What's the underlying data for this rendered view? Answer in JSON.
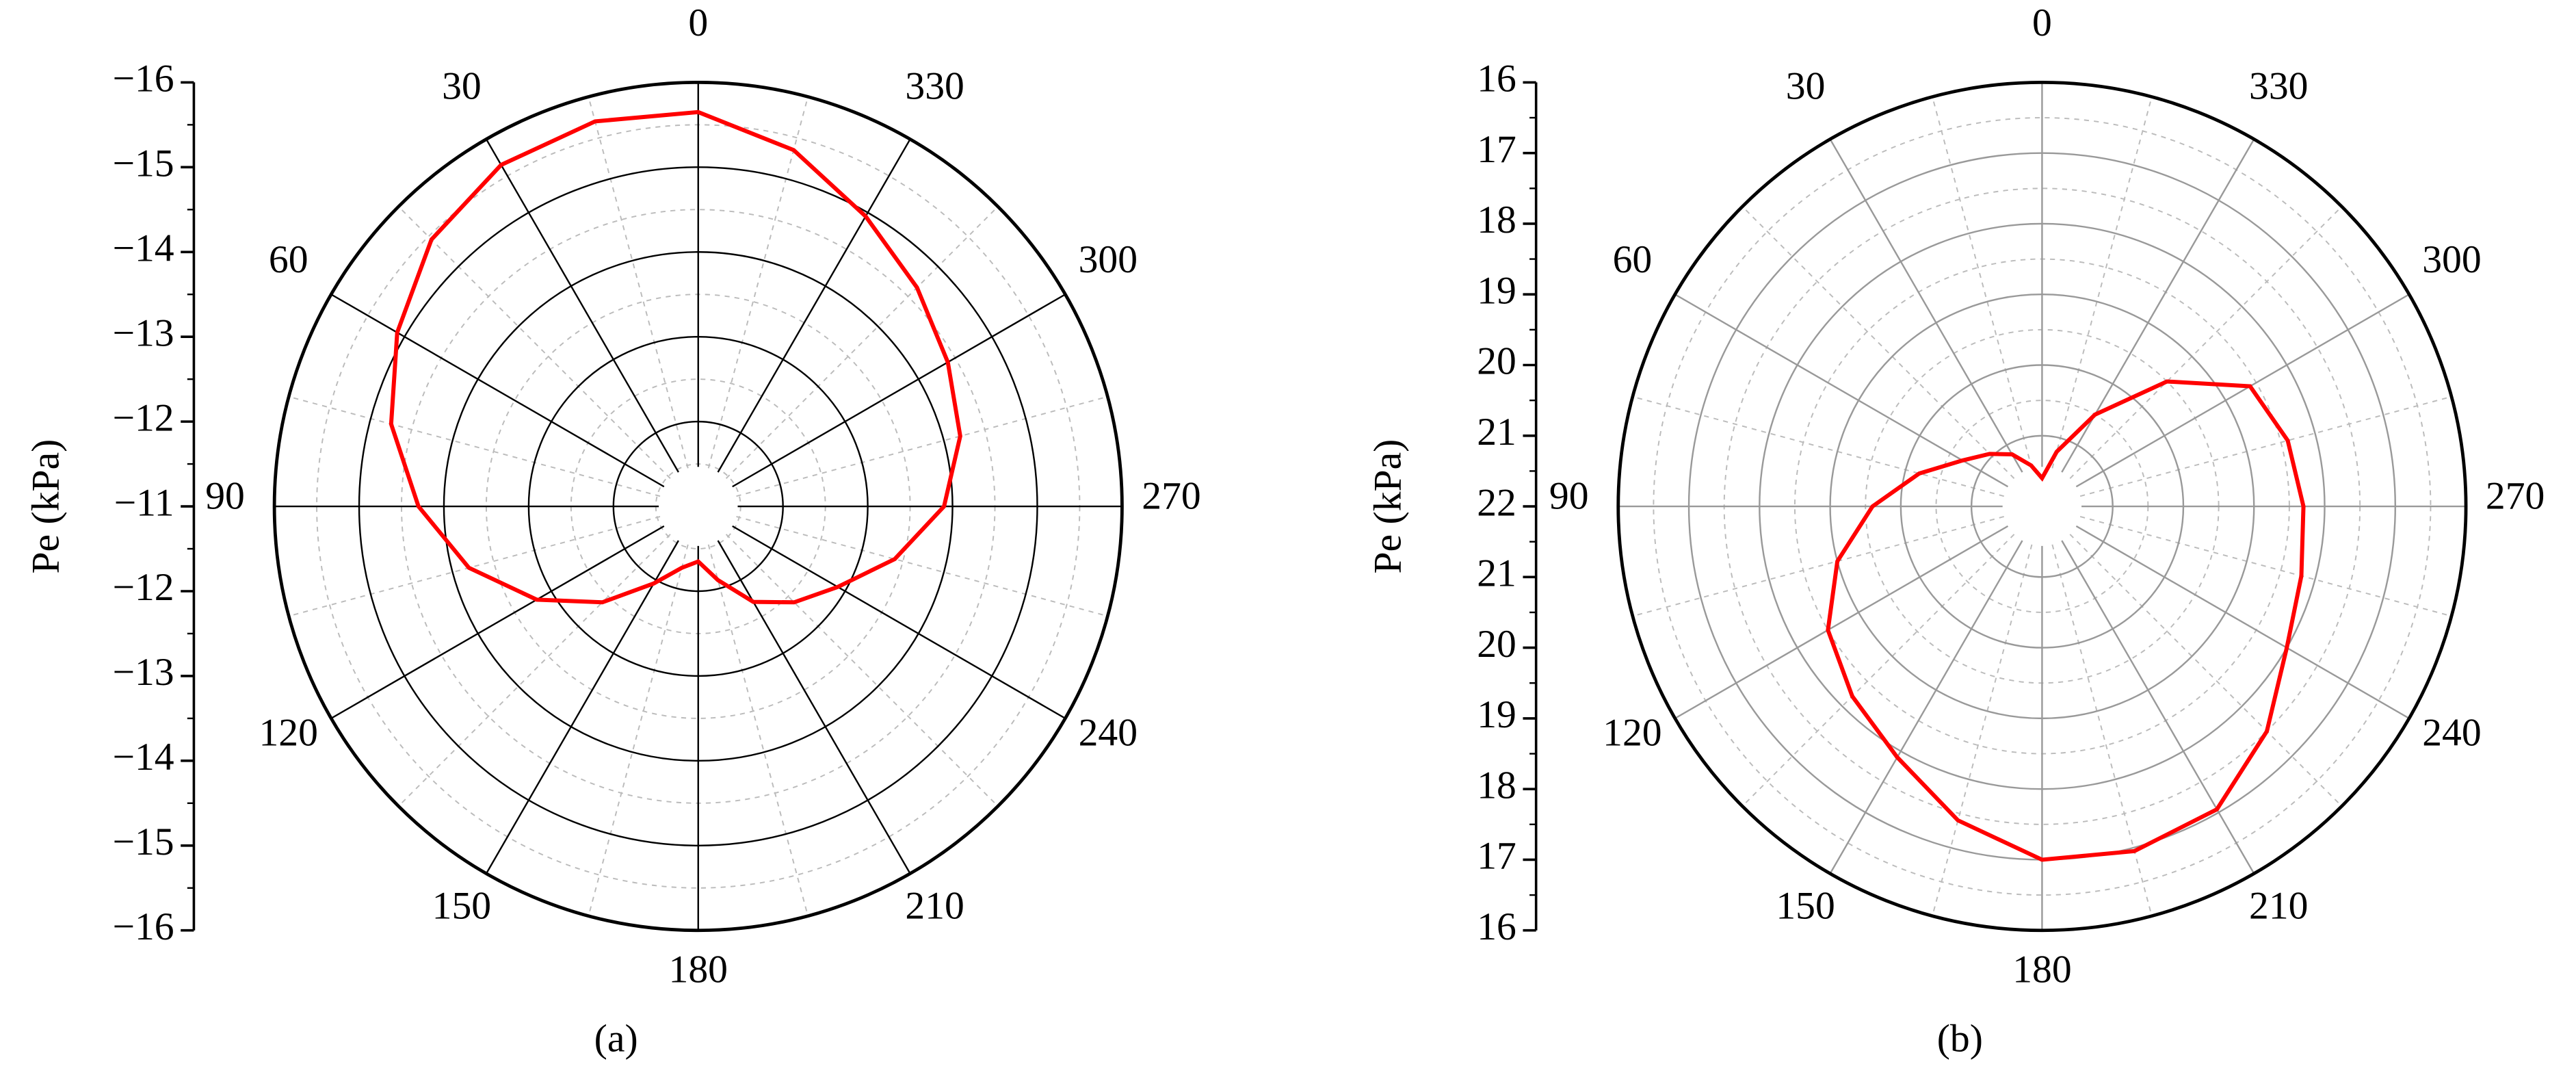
{
  "chart_data": [
    {
      "type": "polar",
      "panel_label": "(a)",
      "ylabel": "Pe (kPa)",
      "color": "#ff0000",
      "grid_color": "#000000",
      "direction": "counterclockwise",
      "rlim": [
        -11,
        -16
      ],
      "rticks": [
        {
          "value": -11,
          "label": "−11"
        },
        {
          "value": -12,
          "label": "−12"
        },
        {
          "value": -13,
          "label": "−13"
        },
        {
          "value": -14,
          "label": "−14"
        },
        {
          "value": -15,
          "label": "−15"
        },
        {
          "value": -16,
          "label": "−16"
        }
      ],
      "angle_ticks": [
        0,
        30,
        60,
        90,
        120,
        150,
        180,
        210,
        240,
        270,
        300,
        330
      ],
      "theta": [
        0,
        15,
        30,
        45,
        60,
        75,
        90,
        105,
        120,
        135,
        150,
        165,
        180,
        195,
        210,
        225,
        240,
        255,
        270,
        285,
        300,
        315,
        330,
        345
      ],
      "values": [
        -15.65,
        -15.7,
        -15.65,
        -15.45,
        -15.1,
        -14.75,
        -14.3,
        -13.8,
        -13.2,
        -12.6,
        -12.05,
        -11.75,
        -11.65,
        -11.9,
        -12.3,
        -12.6,
        -12.9,
        -13.4,
        -13.9,
        -14.2,
        -14.4,
        -14.65,
        -14.95,
        -15.35
      ]
    },
    {
      "type": "polar",
      "panel_label": "(b)",
      "ylabel": "Pe (kPa)",
      "color": "#ff0000",
      "grid_color": "#999999",
      "direction": "counterclockwise",
      "rlim": [
        22,
        16
      ],
      "rticks": [
        22,
        21,
        20,
        19,
        18,
        17,
        16
      ],
      "angle_ticks": [
        0,
        30,
        60,
        90,
        120,
        150,
        180,
        210,
        240,
        270,
        300,
        330
      ],
      "theta": [
        0,
        15,
        30,
        45,
        60,
        75,
        90,
        105,
        120,
        135,
        150,
        165,
        180,
        195,
        210,
        225,
        240,
        255,
        270,
        285,
        300,
        315,
        330,
        345
      ],
      "values": [
        21.6,
        21.4,
        21.15,
        20.95,
        20.7,
        20.2,
        19.6,
        19.0,
        18.5,
        18.2,
        17.9,
        17.4,
        17.0,
        16.95,
        17.05,
        17.5,
        18.0,
        18.2,
        18.3,
        18.4,
        18.6,
        19.5,
        20.5,
        21.2
      ]
    }
  ]
}
